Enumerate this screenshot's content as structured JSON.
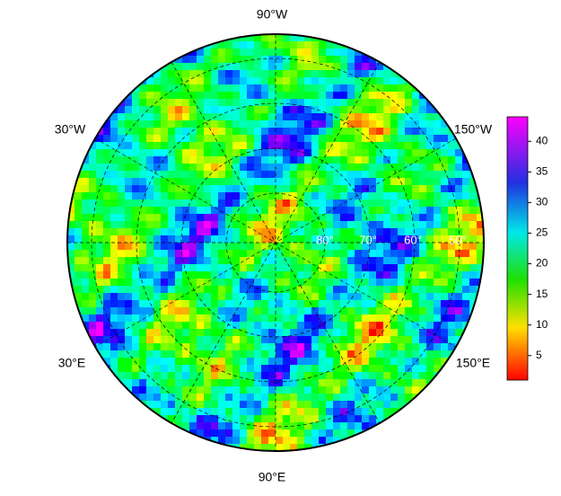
{
  "map": {
    "longitude_labels": [
      "90°W",
      "30°W",
      "150°W",
      "30°E",
      "150°E",
      "90°E"
    ],
    "latitude_labels": [
      "80°",
      "70°",
      "60°",
      "50°"
    ],
    "colorbar": {
      "lim": [
        1,
        44
      ],
      "ticks": [
        5,
        10,
        15,
        20,
        25,
        30,
        35,
        40
      ]
    }
  }
}
